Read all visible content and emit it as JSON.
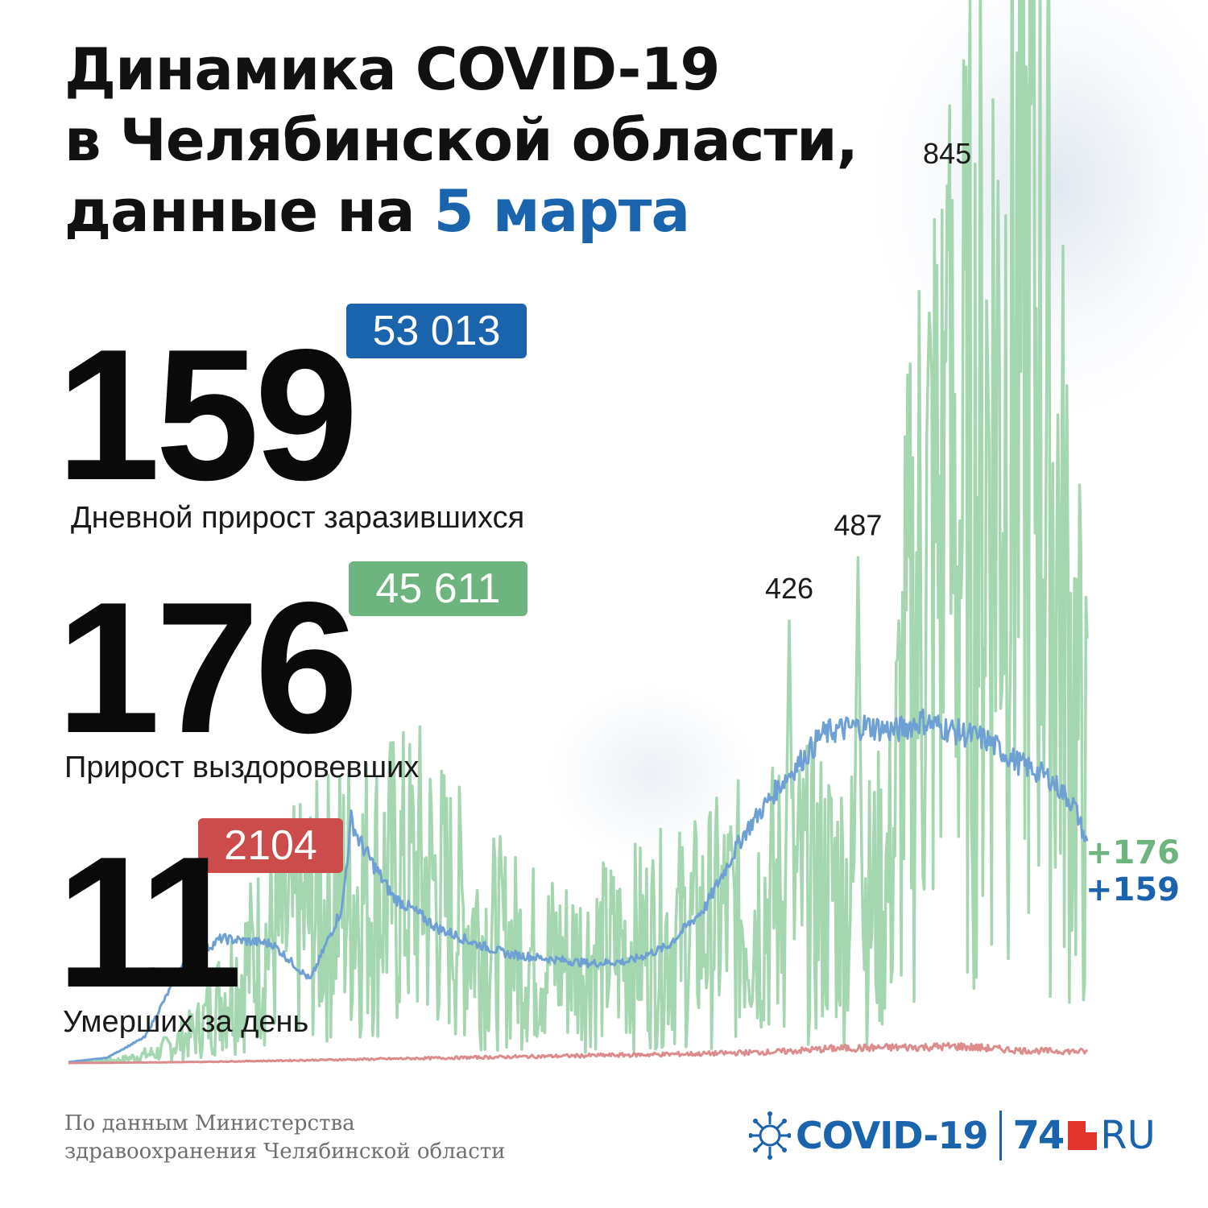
{
  "title": {
    "line1": "Динамика COVID-19",
    "line2": "в Челябинской области,",
    "line3_prefix": "данные на ",
    "line3_date": "5 марта"
  },
  "stats": {
    "infected": {
      "daily": "159",
      "total": "53 013",
      "label": "Дневной прирост заразившихся",
      "color": "#1a63ad"
    },
    "recovered": {
      "daily": "176",
      "total": "45 611",
      "label": "Прирост выздоровевших",
      "color": "#6db47f"
    },
    "deaths": {
      "daily": "11",
      "total": "2104",
      "label": "Умерших за день",
      "color": "#cc4b4b"
    }
  },
  "chart_data": {
    "type": "line",
    "series": [
      {
        "name": "Дневной прирост заразившихся",
        "color": "#6fa0d4",
        "end_label": "+159",
        "keypoints": [
          [
            0,
            1
          ],
          [
            30,
            5
          ],
          [
            60,
            25
          ],
          [
            75,
            60
          ],
          [
            90,
            95
          ],
          [
            120,
            120
          ],
          [
            160,
            115
          ],
          [
            190,
            80
          ],
          [
            215,
            150
          ],
          [
            222,
            235
          ],
          [
            228,
            215
          ],
          [
            240,
            190
          ],
          [
            255,
            160
          ],
          [
            270,
            148
          ],
          [
            290,
            130
          ],
          [
            320,
            115
          ],
          [
            345,
            105
          ],
          [
            380,
            100
          ],
          [
            410,
            96
          ],
          [
            440,
            98
          ],
          [
            470,
            112
          ],
          [
            500,
            150
          ],
          [
            530,
            220
          ],
          [
            560,
            270
          ],
          [
            585,
            305
          ],
          [
            590,
            315
          ],
          [
            600,
            320
          ],
          [
            625,
            325
          ],
          [
            650,
            320
          ],
          [
            670,
            330
          ],
          [
            700,
            318
          ],
          [
            720,
            312
          ],
          [
            745,
            290
          ],
          [
            770,
            275
          ],
          [
            790,
            248
          ],
          [
            800,
            210
          ]
        ]
      },
      {
        "name": "Прирост выздоровевших",
        "color": "#a4d6b0",
        "end_label": "+176",
        "keypoints": [
          [
            0,
            0
          ],
          [
            40,
            3
          ],
          [
            70,
            10
          ],
          [
            100,
            30
          ],
          [
            130,
            80
          ],
          [
            160,
            120
          ],
          [
            190,
            140
          ],
          [
            220,
            165
          ],
          [
            250,
            170
          ],
          [
            280,
            178
          ],
          [
            300,
            150
          ],
          [
            330,
            120
          ],
          [
            360,
            105
          ],
          [
            390,
            100
          ],
          [
            420,
            105
          ],
          [
            450,
            115
          ],
          [
            470,
            120
          ],
          [
            490,
            125
          ],
          [
            515,
            140
          ],
          [
            540,
            150
          ],
          [
            560,
            160
          ],
          [
            585,
            165
          ],
          [
            600,
            165
          ],
          [
            615,
            160
          ],
          [
            630,
            150
          ],
          [
            645,
            180
          ],
          [
            655,
            320
          ],
          [
            670,
            470
          ],
          [
            690,
            520
          ],
          [
            705,
            540
          ],
          [
            720,
            600
          ],
          [
            740,
            690
          ],
          [
            760,
            700
          ],
          [
            780,
            450
          ],
          [
            800,
            245
          ]
        ],
        "spikes": [
          [
            566,
            426
          ],
          [
            620,
            487
          ],
          [
            690,
            845
          ]
        ],
        "annotations": [
          "426",
          "487",
          "845"
        ]
      },
      {
        "name": "Умерших за день",
        "color": "#dc8c8c",
        "keypoints": [
          [
            0,
            0
          ],
          [
            100,
            1
          ],
          [
            200,
            3
          ],
          [
            300,
            5
          ],
          [
            400,
            7
          ],
          [
            500,
            9
          ],
          [
            560,
            11
          ],
          [
            600,
            14
          ],
          [
            650,
            15
          ],
          [
            700,
            16
          ],
          [
            750,
            12
          ],
          [
            800,
            11
          ]
        ]
      }
    ],
    "x_range": [
      0,
      800
    ],
    "y_range": [
      0,
      900
    ]
  },
  "footer": {
    "source_line1": "По данным Министерства",
    "source_line2": "здравоохранения Челябинской области"
  },
  "logo": {
    "covid": "COVID-19",
    "site_num": "74",
    "site_ru": "RU"
  }
}
